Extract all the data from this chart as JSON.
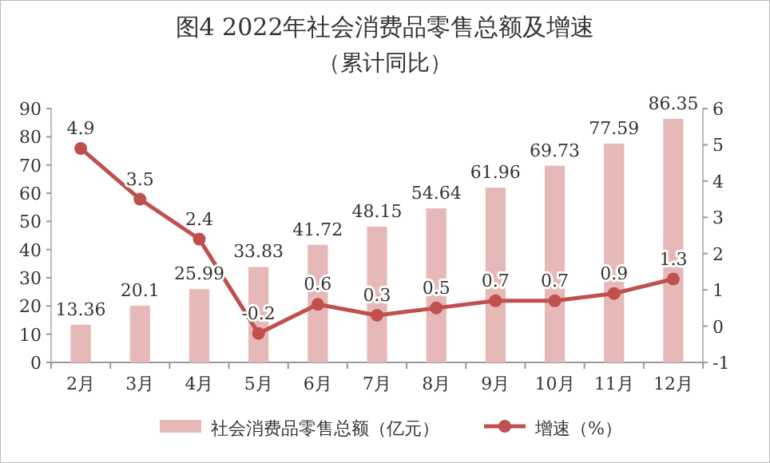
{
  "chart_data": {
    "type": "bar",
    "title": "图4  2022年社会消费品零售总额及增速",
    "subtitle": "（累计同比）",
    "categories": [
      "2月",
      "3月",
      "4月",
      "5月",
      "6月",
      "7月",
      "8月",
      "9月",
      "10月",
      "11月",
      "12月"
    ],
    "series": [
      {
        "name": "社会消费品零售总额（亿元）",
        "color": "#e6b9b8",
        "values": [
          13.36,
          20.1,
          25.99,
          33.83,
          41.72,
          48.15,
          54.64,
          61.96,
          69.73,
          77.59,
          86.35
        ]
      },
      {
        "name": "增速（%）",
        "type": "line",
        "axis": "y2",
        "color": "#c0504d",
        "values": [
          4.9,
          3.5,
          2.4,
          -0.2,
          0.6,
          0.3,
          0.5,
          0.7,
          0.7,
          0.9,
          1.3
        ]
      }
    ],
    "ylim": [
      0,
      90
    ],
    "yticks": [
      0,
      10,
      20,
      30,
      40,
      50,
      60,
      70,
      80,
      90
    ],
    "y2lim": [
      -1,
      6
    ],
    "y2ticks": [
      -1,
      0,
      1,
      2,
      3,
      4,
      5,
      6
    ],
    "data_labels": true,
    "legend": "bottom",
    "marker": "circle",
    "line_style": "solid"
  }
}
